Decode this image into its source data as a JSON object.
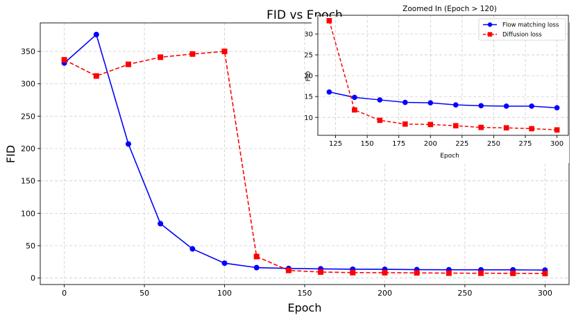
{
  "chart_data": [
    {
      "type": "line",
      "title": "FID vs Epoch",
      "xlabel": "Epoch",
      "ylabel": "FID",
      "xlim": [
        -15,
        315
      ],
      "ylim": [
        -10,
        394
      ],
      "xticks": [
        0,
        50,
        100,
        150,
        200,
        250,
        300
      ],
      "yticks": [
        0,
        50,
        100,
        150,
        200,
        250,
        300,
        350
      ],
      "grid": true,
      "x": [
        0,
        20,
        40,
        60,
        80,
        100,
        120,
        140,
        160,
        180,
        200,
        220,
        240,
        260,
        280,
        300
      ],
      "series": [
        {
          "name": "Flow matching loss",
          "color": "#0000ff",
          "line": "solid",
          "marker": "circle",
          "values": [
            332,
            376,
            207,
            84,
            45,
            23,
            16.1,
            14.8,
            14.2,
            13.6,
            13.5,
            13.0,
            12.8,
            12.7,
            12.7,
            12.3
          ]
        },
        {
          "name": "Diffusion loss",
          "color": "#ff0000",
          "line": "dashed",
          "marker": "square",
          "values": [
            337,
            312,
            330,
            341,
            346,
            350,
            33.2,
            11.8,
            9.3,
            8.4,
            8.3,
            8.0,
            7.6,
            7.5,
            7.3,
            7.0
          ]
        }
      ]
    },
    {
      "type": "line",
      "title": "Zoomed In (Epoch > 120)",
      "xlabel": "Epoch",
      "ylabel": "FID",
      "xlim": [
        111,
        309
      ],
      "ylim": [
        5.7,
        34.5
      ],
      "xticks": [
        125,
        150,
        175,
        200,
        225,
        250,
        275,
        300
      ],
      "yticks": [
        10,
        15,
        20,
        25,
        30
      ],
      "grid": true,
      "legend": "top-right",
      "x": [
        120,
        140,
        160,
        180,
        200,
        220,
        240,
        260,
        280,
        300
      ],
      "series": [
        {
          "name": "Flow matching loss",
          "color": "#0000ff",
          "line": "solid",
          "marker": "circle",
          "values": [
            16.1,
            14.8,
            14.2,
            13.6,
            13.5,
            13.0,
            12.8,
            12.7,
            12.7,
            12.3
          ]
        },
        {
          "name": "Diffusion loss",
          "color": "#ff0000",
          "line": "dashed",
          "marker": "square",
          "values": [
            33.2,
            11.8,
            9.3,
            8.4,
            8.3,
            8.0,
            7.6,
            7.5,
            7.3,
            7.0
          ]
        }
      ]
    }
  ]
}
